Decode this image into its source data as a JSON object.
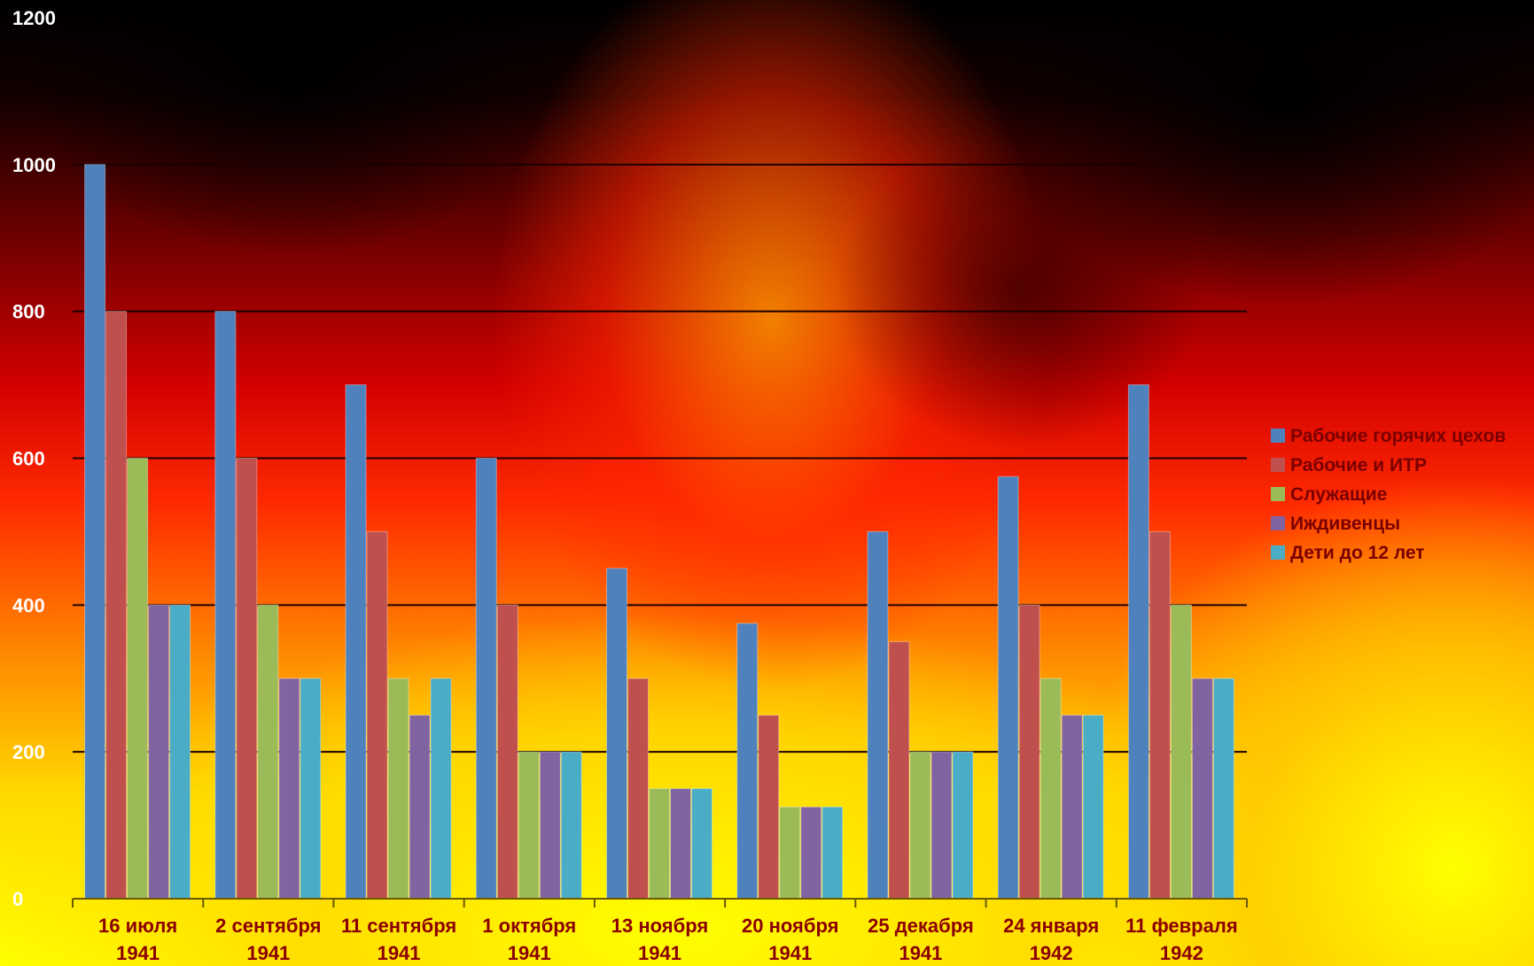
{
  "chart_data": {
    "type": "bar",
    "categories": [
      [
        "16 июля",
        "1941"
      ],
      [
        "2 сентября",
        "1941"
      ],
      [
        "11 сентября",
        "1941"
      ],
      [
        "1 октября",
        "1941"
      ],
      [
        "13 ноября",
        "1941"
      ],
      [
        "20 ноября",
        "1941"
      ],
      [
        "25 декабря",
        "1941"
      ],
      [
        "24 января",
        "1942"
      ],
      [
        "11 февраля",
        "1942"
      ]
    ],
    "series": [
      {
        "name": "Рабочие горячих цехов",
        "color": "#4f81bd",
        "values": [
          1000,
          800,
          700,
          600,
          450,
          375,
          500,
          575,
          700
        ]
      },
      {
        "name": "Рабочие и ИТР",
        "color": "#c0504d",
        "values": [
          800,
          600,
          500,
          400,
          300,
          250,
          350,
          400,
          500
        ]
      },
      {
        "name": "Служащие",
        "color": "#9bbb59",
        "values": [
          600,
          400,
          300,
          200,
          150,
          125,
          200,
          300,
          400
        ]
      },
      {
        "name": "Иждивенцы",
        "color": "#8064a2",
        "values": [
          400,
          300,
          250,
          200,
          150,
          125,
          200,
          250,
          300
        ]
      },
      {
        "name": "Дети до 12 лет",
        "color": "#4bacc6",
        "values": [
          400,
          300,
          300,
          200,
          150,
          125,
          200,
          250,
          300
        ]
      }
    ],
    "yticks": [
      "0",
      "200",
      "400",
      "600",
      "800",
      "1000",
      "1200"
    ],
    "ylim": [
      0,
      1200
    ],
    "grid": true,
    "legend_position": "right",
    "title": "",
    "xlabel": "",
    "ylabel": ""
  }
}
